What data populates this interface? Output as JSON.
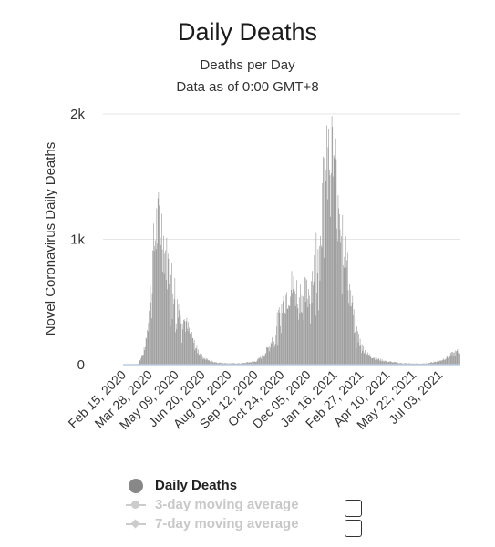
{
  "chart_data": {
    "type": "bar",
    "title": "Daily Deaths",
    "subtitle_lines": [
      "Deaths per Day",
      "Data as of 0:00 GMT+8"
    ],
    "ylabel": "Novel Coronavirus Daily Deaths",
    "xlabel": "",
    "ylim": [
      0,
      2000
    ],
    "yticks": [
      0,
      1000,
      2000
    ],
    "ytick_labels": [
      "0",
      "1k",
      "2k"
    ],
    "xtick_labels": [
      "Feb 15, 2020",
      "Mar 28, 2020",
      "May 09, 2020",
      "Jun 20, 2020",
      "Aug 01, 2020",
      "Sep 12, 2020",
      "Oct 24, 2020",
      "Dec 05, 2020",
      "Jan 16, 2021",
      "Feb 27, 2021",
      "Apr 10, 2021",
      "May 22, 2021",
      "Jul 03, 2021"
    ],
    "x_start": "Feb 15, 2020",
    "x_end": "Aug 04, 2021",
    "grid": true,
    "legend_position": "bottom",
    "series": [
      {
        "name": "Daily Deaths",
        "color": "#999999",
        "approx_daily_values_note": "",
        "keypoints": [
          [
            "2020-02-15",
            0
          ],
          [
            "2020-03-10",
            5
          ],
          [
            "2020-03-20",
            120
          ],
          [
            "2020-03-28",
            480
          ],
          [
            "2020-04-03",
            900
          ],
          [
            "2020-04-08",
            1100
          ],
          [
            "2020-04-15",
            1130
          ],
          [
            "2020-04-22",
            870
          ],
          [
            "2020-05-01",
            700
          ],
          [
            "2020-05-09",
            560
          ],
          [
            "2020-05-20",
            380
          ],
          [
            "2020-06-01",
            230
          ],
          [
            "2020-06-10",
            130
          ],
          [
            "2020-06-20",
            60
          ],
          [
            "2020-07-01",
            30
          ],
          [
            "2020-07-15",
            15
          ],
          [
            "2020-08-01",
            10
          ],
          [
            "2020-08-20",
            10
          ],
          [
            "2020-09-12",
            25
          ],
          [
            "2020-09-25",
            70
          ],
          [
            "2020-10-05",
            150
          ],
          [
            "2020-10-15",
            300
          ],
          [
            "2020-10-24",
            450
          ],
          [
            "2020-11-01",
            570
          ],
          [
            "2020-11-10",
            620
          ],
          [
            "2020-11-20",
            570
          ],
          [
            "2020-12-05",
            560
          ],
          [
            "2020-12-12",
            700
          ],
          [
            "2020-12-20",
            1000
          ],
          [
            "2020-12-28",
            1300
          ],
          [
            "2021-01-05",
            1550
          ],
          [
            "2021-01-10",
            1720
          ],
          [
            "2021-01-16",
            1600
          ],
          [
            "2021-01-24",
            1300
          ],
          [
            "2021-02-01",
            950
          ],
          [
            "2021-02-10",
            560
          ],
          [
            "2021-02-20",
            280
          ],
          [
            "2021-02-27",
            160
          ],
          [
            "2021-03-10",
            80
          ],
          [
            "2021-03-25",
            45
          ],
          [
            "2021-04-10",
            25
          ],
          [
            "2021-05-01",
            12
          ],
          [
            "2021-05-22",
            8
          ],
          [
            "2021-06-10",
            8
          ],
          [
            "2021-07-03",
            30
          ],
          [
            "2021-07-20",
            75
          ],
          [
            "2021-08-04",
            110
          ]
        ]
      },
      {
        "name": "3-day moving average",
        "visible": false
      },
      {
        "name": "7-day moving average",
        "visible": false
      }
    ]
  },
  "legend": {
    "items": [
      {
        "label": "Daily Deaths",
        "state": "active",
        "marker": "circle"
      },
      {
        "label": "3-day moving average",
        "state": "inactive",
        "marker": "line-circle"
      },
      {
        "label": "7-day moving average",
        "state": "inactive",
        "marker": "line-diamond"
      }
    ]
  },
  "colors": {
    "bar": "#999999",
    "grid": "#e6e6e6",
    "baseline": "#b8cbe0",
    "inactive": "#c8c8c8"
  }
}
